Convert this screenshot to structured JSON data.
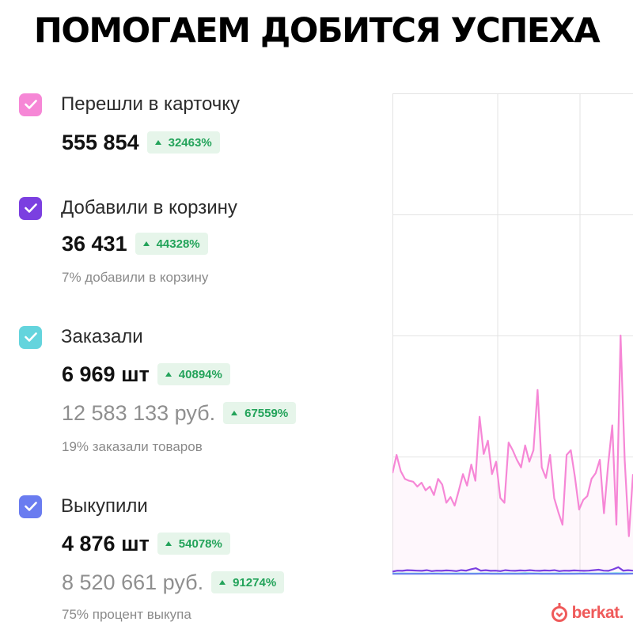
{
  "headline": "ПОМОГАЕМ ДОБИТСЯ УСПЕХА",
  "metrics": [
    {
      "title": "Перешли в карточку",
      "checkbox_color": "#f687d6",
      "value": "555 854",
      "change": "32463%"
    },
    {
      "title": "Добавили в корзину",
      "checkbox_color": "#7b3fe0",
      "value": "36 431",
      "change": "44328%",
      "note": "7% добавили в корзину"
    },
    {
      "title": "Заказали",
      "checkbox_color": "#64d4dd",
      "value": "6 969 шт",
      "change": "40894%",
      "secondary_value": "12 583 133 руб.",
      "secondary_change": "67559%",
      "note": "19% заказали товаров"
    },
    {
      "title": "Выкупили",
      "checkbox_color": "#6a7cf0",
      "value": "4 876 шт",
      "change": "54078%",
      "secondary_value": "8 520 661 руб.",
      "secondary_change": "91274%",
      "note": "75% процент выкупа"
    }
  ],
  "chart": {
    "series_colors": {
      "card_views": "#f687d6",
      "cart_adds": "#7b3fe0",
      "orders": "#64d4dd",
      "buyouts": "#6a7cf0"
    },
    "card_views": [
      1060,
      1250,
      1080,
      1000,
      980,
      970,
      920,
      960,
      880,
      920,
      830,
      1000,
      940,
      750,
      810,
      720,
      880,
      1050,
      930,
      1150,
      980,
      1650,
      1260,
      1400,
      1050,
      1180,
      800,
      750,
      1380,
      1300,
      1200,
      1120,
      1350,
      1180,
      1300,
      1930,
      1120,
      1010,
      1250,
      800,
      650,
      520,
      1250,
      1300,
      1020,
      680,
      780,
      820,
      1000,
      1060,
      1200,
      640,
      1150,
      1560,
      520,
      2500,
      1200,
      400,
      1050
    ],
    "cart_adds": [
      30,
      40,
      38,
      45,
      42,
      40,
      38,
      45,
      35,
      40,
      38,
      42,
      40,
      35,
      45,
      40,
      55,
      65,
      40,
      45,
      38,
      40,
      35,
      45,
      40,
      38,
      42,
      40,
      45,
      40,
      38,
      42,
      40,
      45,
      35,
      40,
      38,
      42,
      40,
      38,
      40,
      45,
      50,
      40,
      38,
      55,
      75,
      40,
      45,
      40
    ],
    "orders": [
      10,
      12,
      10,
      11,
      10,
      12,
      11,
      10,
      12,
      11,
      10,
      12,
      11,
      10,
      12,
      11,
      13,
      12,
      10,
      11,
      12,
      10,
      11,
      12,
      10,
      11,
      12,
      13,
      12,
      10
    ],
    "buyouts": [
      6,
      7,
      6,
      7,
      6,
      8,
      7,
      6,
      7,
      6,
      7,
      8,
      7,
      6,
      7,
      6,
      7,
      8,
      7,
      6,
      7,
      6,
      7,
      8,
      7,
      6,
      7,
      6,
      7,
      8
    ]
  },
  "brand": {
    "name": "berkat.",
    "icon": "heart-outline-icon",
    "color": "#ef5a5a"
  }
}
